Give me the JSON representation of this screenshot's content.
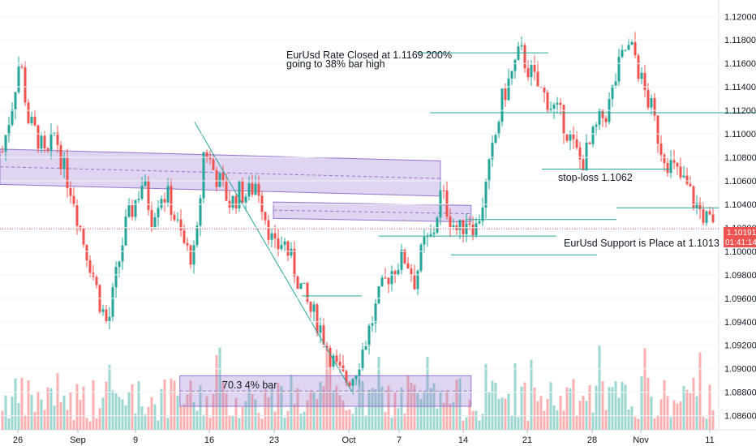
{
  "chart_data": {
    "type": "candlestick",
    "symbol": "EURUSD",
    "y_axis": {
      "ticks": [
        "1.12000",
        "1.11800",
        "1.11600",
        "1.11400",
        "1.11200",
        "1.11000",
        "1.10800",
        "1.10600",
        "1.10400",
        "1.10200",
        "1.10000",
        "1.09800",
        "1.09600",
        "1.09400",
        "1.09200",
        "1.09000",
        "1.08800",
        "1.08600"
      ],
      "range": [
        1.0848,
        1.1214
      ],
      "position": "right"
    },
    "x_axis": {
      "ticks": [
        "26",
        "Sep",
        "9",
        "16",
        "23",
        "Oct",
        "7",
        "14",
        "21",
        "28",
        "Nov",
        "11"
      ]
    },
    "last_price": "1.10191",
    "countdown": "01:41:14",
    "price_path": [
      1.1085,
      1.1122,
      1.1165,
      1.111,
      1.1098,
      1.1076,
      1.1102,
      1.107,
      1.105,
      1.1015,
      1.099,
      1.096,
      1.0935,
      1.098,
      1.102,
      1.104,
      1.106,
      1.103,
      1.105,
      1.1045,
      1.102,
      1.1,
      1.0995,
      1.109,
      1.107,
      1.1055,
      1.104,
      1.105,
      1.1048,
      1.106,
      1.103,
      1.1,
      1.101,
      1.099,
      1.097,
      1.095,
      1.094,
      1.092,
      1.09,
      1.089,
      1.0895,
      1.0915,
      1.0938,
      1.0962,
      1.098,
      1.099,
      1.0995,
      1.0975,
      1.1005,
      1.1012,
      1.105,
      1.103,
      1.1015,
      1.103,
      1.102,
      1.105,
      1.109,
      1.113,
      1.115,
      1.117,
      1.1155,
      1.114,
      1.113,
      1.112,
      1.111,
      1.109,
      1.1075,
      1.109,
      1.111,
      1.112,
      1.115,
      1.1172,
      1.117,
      1.114,
      1.112,
      1.109,
      1.1075,
      1.1065,
      1.1055,
      1.104,
      1.103,
      1.1019
    ],
    "zones": [
      {
        "name": "upper-channel",
        "start": [
          0,
          1.1072
        ],
        "end": [
          0.617,
          1.1062
        ],
        "width": 0.0015
      },
      {
        "name": "mid-consolidation",
        "start": [
          0.383,
          1.1035
        ],
        "end": [
          0.66,
          1.1032
        ],
        "width": 0.0007
      },
      {
        "name": "volume-box",
        "start": [
          0.252,
          1.0881
        ],
        "end": [
          0.66,
          1.0881
        ],
        "width": 0.0013
      }
    ],
    "annotations": [
      {
        "text": "EurUsd Rate Closed at 1.1169 200%"
      },
      {
        "text": "going to 38% bar high"
      },
      {
        "text": "stop-loss 1.1062"
      },
      {
        "text": "EurUsd Support is Place at 1.1013"
      },
      {
        "text": "70.3 4% bar"
      }
    ],
    "colors": {
      "bullish": "#26a69a",
      "bearish": "#ef5350",
      "zone_fill": "#9575cd",
      "line": "#26a69a"
    }
  }
}
